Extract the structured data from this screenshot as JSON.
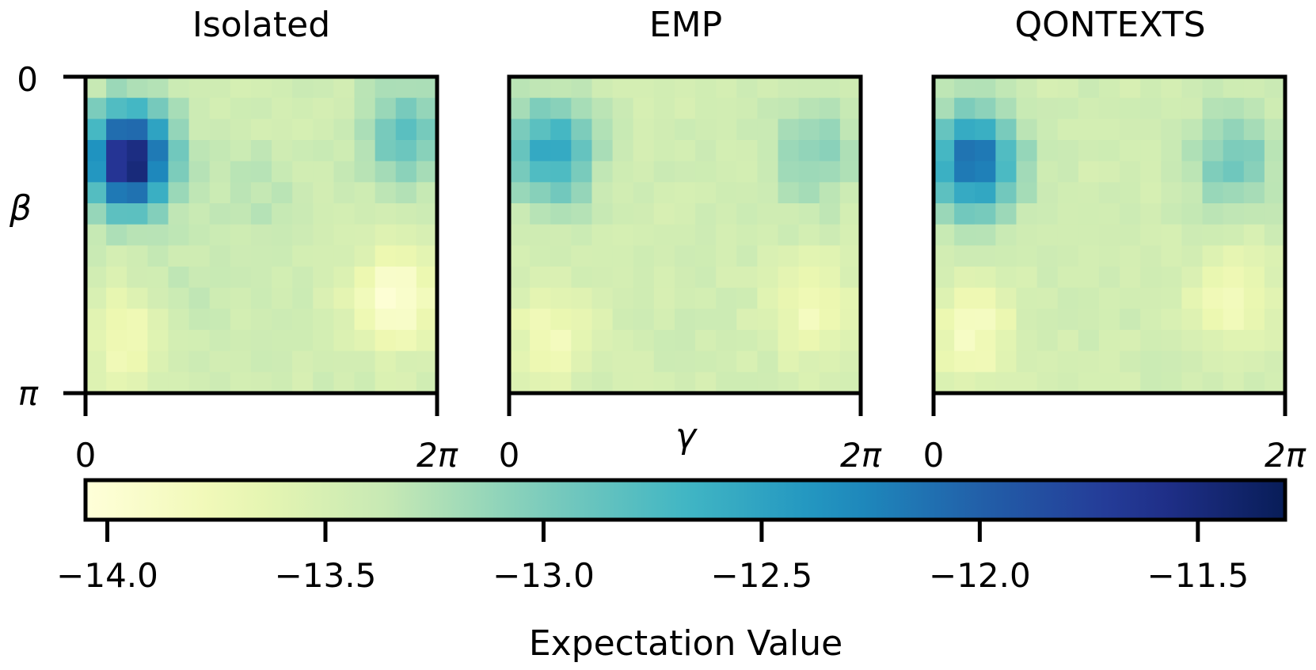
{
  "chart_data": {
    "type": "heatmap",
    "panels": [
      {
        "title": "Isolated",
        "x_tick_labels": [
          "0",
          "2π"
        ]
      },
      {
        "title": "EMP",
        "x_tick_labels": [
          "0",
          "2π"
        ]
      },
      {
        "title": "QONTEXTS",
        "x_tick_labels": [
          "0",
          "2π"
        ]
      }
    ],
    "y_axis": {
      "label": "β",
      "range": [
        0,
        3.14159
      ],
      "tick_labels": [
        "0",
        "π"
      ]
    },
    "x_axis": {
      "label": "γ",
      "range": [
        0,
        6.28318
      ]
    },
    "colorbar": {
      "label": "Expectation Value",
      "range": [
        -14.05,
        -11.3
      ],
      "colormap": "YlGnBu",
      "ticks": [
        -14.0,
        -13.5,
        -13.0,
        -12.5,
        -12.0,
        -11.5
      ],
      "tick_labels": [
        "−14.0",
        "−13.5",
        "−13.0",
        "−12.5",
        "−12.0",
        "−11.5"
      ]
    },
    "grid": {
      "rows": 15,
      "cols": 17
    },
    "features_by_panel": {
      "Isolated": [
        {
          "gamma": 0.78,
          "beta": 0.82,
          "value": -11.35
        },
        {
          "gamma": 5.7,
          "beta": 0.6,
          "value": -12.85
        },
        {
          "gamma": 5.55,
          "beta": 2.2,
          "value": -14.0
        },
        {
          "gamma": 0.8,
          "beta": 2.55,
          "value": -13.85
        },
        {
          "gamma": 3.0,
          "beta": 1.2,
          "value": -13.3
        },
        {
          "gamma": 1.5,
          "beta": 2.3,
          "value": -13.3
        }
      ],
      "EMP": [
        {
          "gamma": 0.75,
          "beta": 0.75,
          "value": -12.55
        },
        {
          "gamma": 5.4,
          "beta": 0.75,
          "value": -13.05
        },
        {
          "gamma": 5.45,
          "beta": 2.3,
          "value": -13.8
        },
        {
          "gamma": 0.75,
          "beta": 2.55,
          "value": -13.78
        }
      ],
      "QONTEXTS": [
        {
          "gamma": 0.72,
          "beta": 0.85,
          "value": -12.05
        },
        {
          "gamma": 5.35,
          "beta": 0.85,
          "value": -12.95
        },
        {
          "gamma": 5.35,
          "beta": 2.2,
          "value": -13.8
        },
        {
          "gamma": 0.7,
          "beta": 2.55,
          "value": -13.85
        }
      ]
    }
  }
}
